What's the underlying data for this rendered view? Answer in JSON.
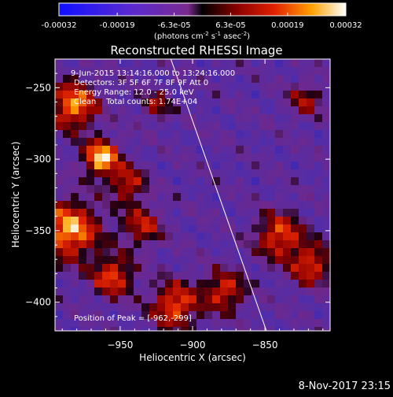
{
  "colorbar": {
    "ticks": [
      "-0.00032",
      "-0.00019",
      "-6.3e-05",
      "6.3e-05",
      "0.00019",
      "0.00032"
    ],
    "tick_values": [
      -0.00032,
      -0.00019,
      -6.3e-05,
      6.3e-05,
      0.00019,
      0.00032
    ],
    "range": [
      -0.00032,
      0.00032
    ],
    "units_base": "(photons cm",
    "units_exp1": "-2",
    "units_mid": " s",
    "units_exp2": "-1",
    "units_end": " asec",
    "units_exp3": "-2",
    "units_close": ")"
  },
  "chart_data": {
    "type": "heatmap",
    "title": "Reconstructed RHESSI Image",
    "xlabel": "Heliocentric X (arcsec)",
    "ylabel": "Heliocentric Y (arcsec)",
    "xlim": [
      -995,
      -805
    ],
    "ylim": [
      -420,
      -230
    ],
    "xticks": [
      -950,
      -900,
      -850
    ],
    "yticks": [
      -250,
      -300,
      -350,
      -400
    ],
    "peak": {
      "x": -962,
      "y": -299
    },
    "limb_line": [
      [
        -915,
        -230
      ],
      [
        -849,
        -420
      ]
    ],
    "annotations": [
      "9-Jun-2015 13:14:16.000 to 13:24:16.000",
      "Detectors: 3F 5F 6F 7F 8F 9F Att 0",
      "Energy Range: 12.0 - 25.0 keV",
      "Clean    Total counts: 1.74E+04",
      "Position of Peak = [-962,-299]"
    ],
    "bright_regions": [
      {
        "x": -963,
        "y": -298,
        "r": 12,
        "level": 1.0
      },
      {
        "x": -982,
        "y": -262,
        "r": 16,
        "level": 0.85
      },
      {
        "x": -985,
        "y": -348,
        "r": 20,
        "level": 0.9
      },
      {
        "x": -945,
        "y": -316,
        "r": 12,
        "level": 0.6
      },
      {
        "x": -935,
        "y": -345,
        "r": 14,
        "level": 0.55
      },
      {
        "x": -955,
        "y": -380,
        "r": 14,
        "level": 0.7
      },
      {
        "x": -912,
        "y": -400,
        "r": 16,
        "level": 0.75
      },
      {
        "x": -878,
        "y": -390,
        "r": 14,
        "level": 0.65
      },
      {
        "x": -840,
        "y": -352,
        "r": 16,
        "level": 0.7
      },
      {
        "x": -818,
        "y": -372,
        "r": 14,
        "level": 0.65
      },
      {
        "x": -822,
        "y": -258,
        "r": 12,
        "level": 0.45
      },
      {
        "x": -925,
        "y": -262,
        "r": 10,
        "level": 0.45
      }
    ]
  },
  "footer": {
    "timestamp": "8-Nov-2017 23:15"
  }
}
